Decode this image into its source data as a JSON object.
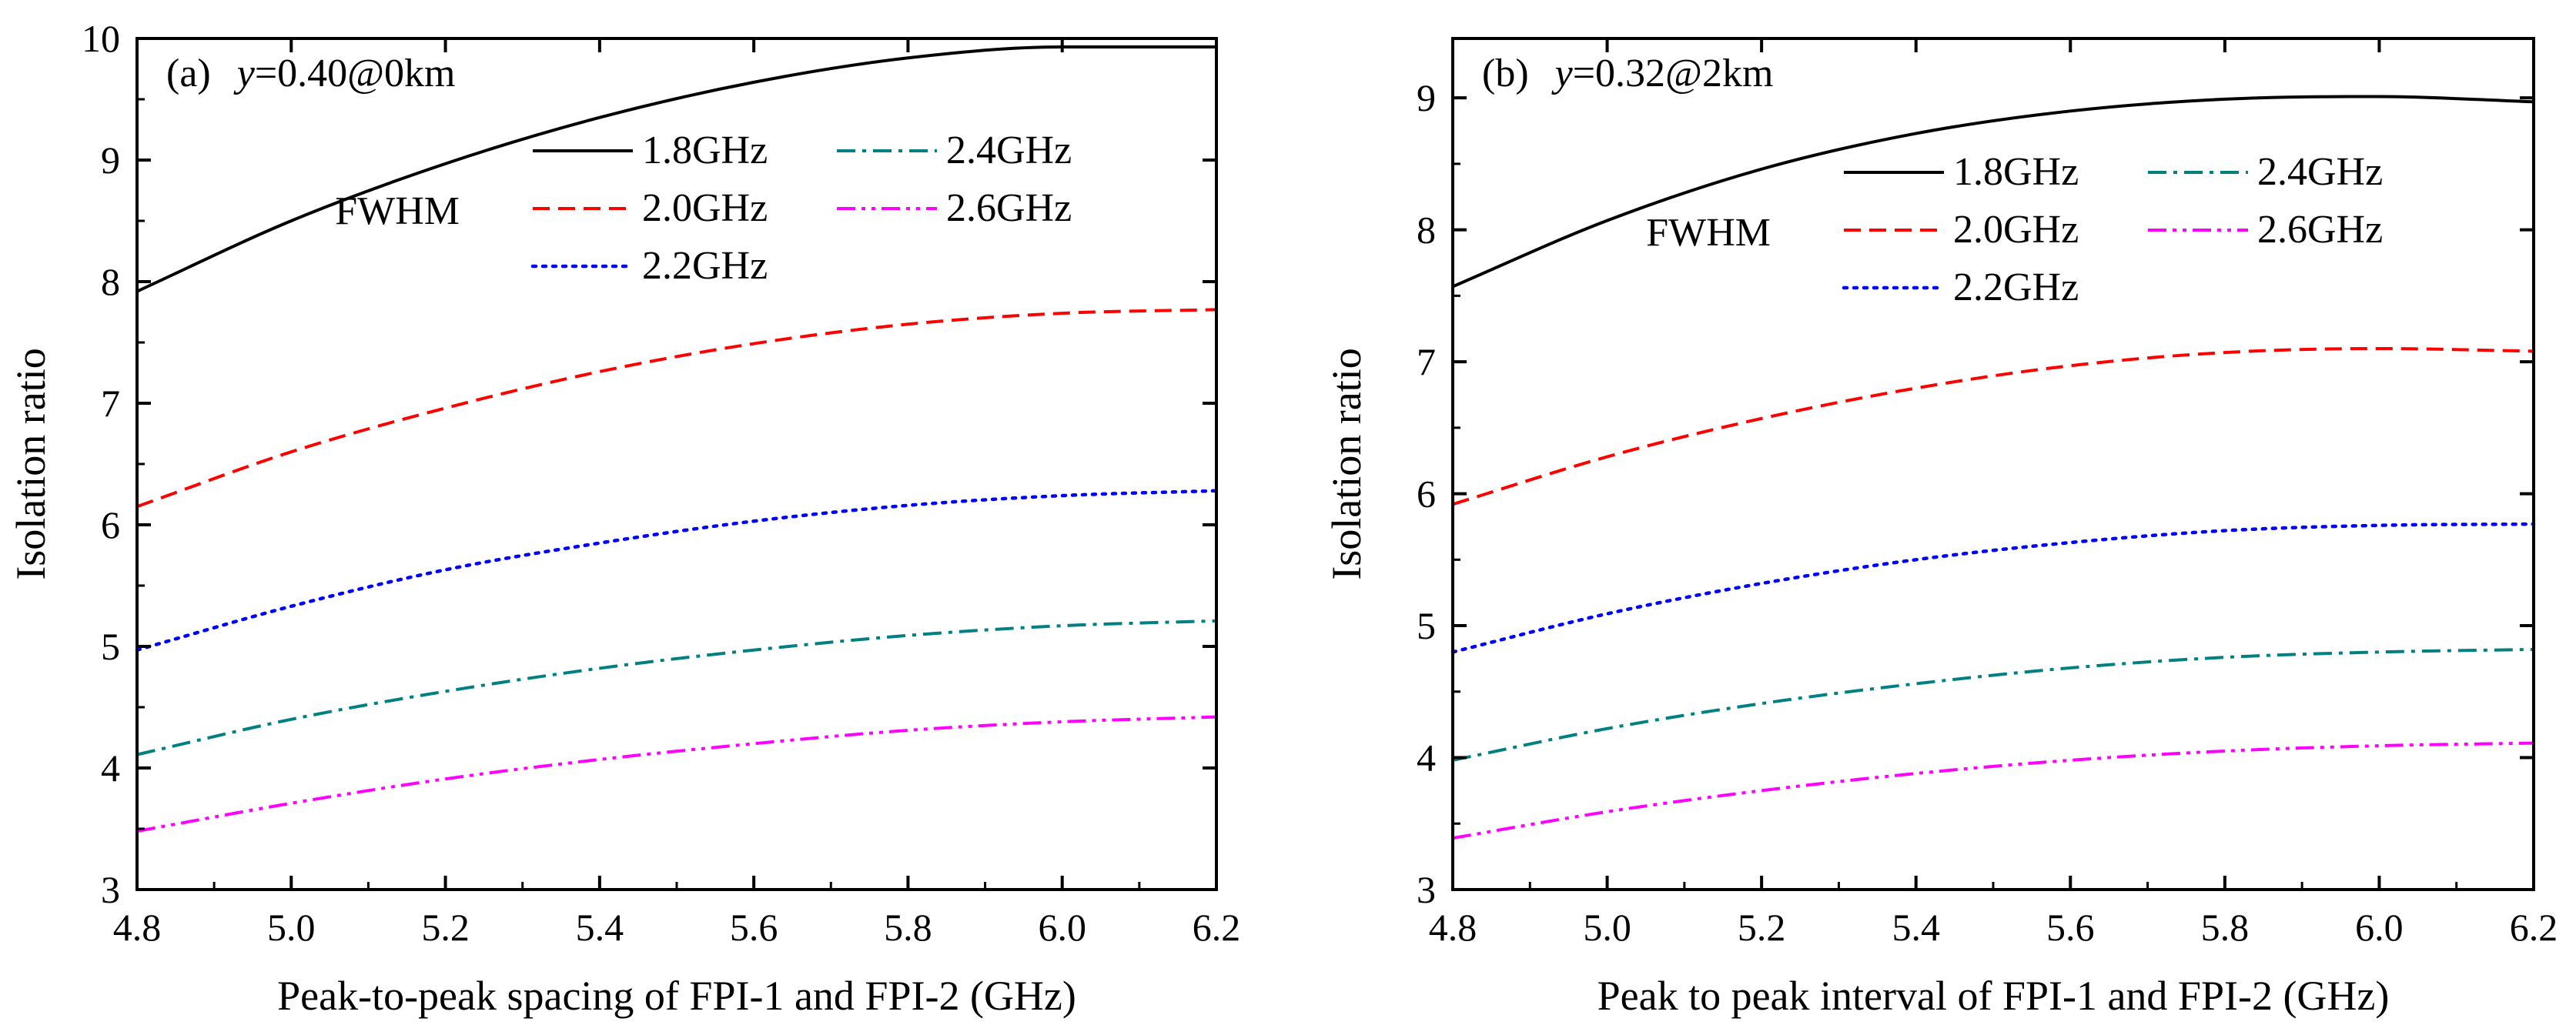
{
  "chart_data": [
    {
      "type": "line",
      "panel_label": "(a)",
      "condition": {
        "variable": "y",
        "rest": "=0.40@0km"
      },
      "xlabel": "Peak-to-peak spacing of FPI-1 and FPI-2 (GHz)",
      "ylabel": "Isolation ratio",
      "xlim": [
        4.8,
        6.2
      ],
      "ylim": [
        3,
        10
      ],
      "x_ticks": [
        4.8,
        5.0,
        5.2,
        5.4,
        5.6,
        5.8,
        6.0,
        6.2
      ],
      "x_tick_labels": [
        "4.8",
        "5.0",
        "5.2",
        "5.4",
        "5.6",
        "5.8",
        "6.0",
        "6.2"
      ],
      "y_ticks": [
        3,
        4,
        5,
        6,
        7,
        8,
        9,
        10
      ],
      "y_tick_labels": [
        "3",
        "4",
        "5",
        "6",
        "7",
        "8",
        "9",
        "10"
      ],
      "legend_title": "FWHM",
      "legend_position": "upper-right",
      "x": [
        4.8,
        5.0,
        5.2,
        5.4,
        5.6,
        5.8,
        6.0,
        6.2
      ],
      "series": [
        {
          "name": "1.8GHz",
          "color": "#000000",
          "style": "solid",
          "values": [
            7.92,
            8.5,
            8.97,
            9.35,
            9.64,
            9.84,
            9.93,
            9.93
          ]
        },
        {
          "name": "2.0GHz",
          "color": "#ff0000",
          "style": "dash",
          "values": [
            6.15,
            6.6,
            6.96,
            7.26,
            7.49,
            7.65,
            7.74,
            7.77
          ]
        },
        {
          "name": "2.2GHz",
          "color": "#0000ff",
          "style": "dot",
          "values": [
            4.97,
            5.33,
            5.63,
            5.85,
            6.03,
            6.16,
            6.24,
            6.28
          ]
        },
        {
          "name": "2.4GHz",
          "color": "#008080",
          "style": "dashdot",
          "values": [
            4.11,
            4.4,
            4.63,
            4.82,
            4.97,
            5.09,
            5.17,
            5.21
          ]
        },
        {
          "name": "2.6GHz",
          "color": "#ff00ff",
          "style": "dashdotdot",
          "values": [
            3.48,
            3.71,
            3.91,
            4.07,
            4.2,
            4.31,
            4.38,
            4.42
          ]
        }
      ]
    },
    {
      "type": "line",
      "panel_label": "(b)",
      "condition": {
        "variable": "y",
        "rest": "=0.32@2km"
      },
      "xlabel": "Peak to peak interval of FPI-1 and FPI-2 (GHz)",
      "ylabel": "Isolation ratio",
      "xlim": [
        4.8,
        6.2
      ],
      "ylim": [
        3,
        9.45
      ],
      "x_ticks": [
        4.8,
        5.0,
        5.2,
        5.4,
        5.6,
        5.8,
        6.0,
        6.2
      ],
      "x_tick_labels": [
        "4.8",
        "5.0",
        "5.2",
        "5.4",
        "5.6",
        "5.8",
        "6.0",
        "6.2"
      ],
      "y_ticks": [
        3,
        4,
        5,
        6,
        7,
        8,
        9
      ],
      "y_tick_labels": [
        "3",
        "4",
        "5",
        "6",
        "7",
        "8",
        "9"
      ],
      "legend_title": "FWHM",
      "legend_position": "upper-right",
      "x": [
        4.8,
        5.0,
        5.2,
        5.4,
        5.6,
        5.8,
        6.0,
        6.2
      ],
      "series": [
        {
          "name": "1.8GHz",
          "color": "#000000",
          "style": "solid",
          "values": [
            7.57,
            8.07,
            8.46,
            8.73,
            8.9,
            8.99,
            9.01,
            8.97
          ]
        },
        {
          "name": "2.0GHz",
          "color": "#ff0000",
          "style": "dash",
          "values": [
            5.92,
            6.28,
            6.57,
            6.8,
            6.97,
            7.07,
            7.1,
            7.08
          ]
        },
        {
          "name": "2.2GHz",
          "color": "#0000ff",
          "style": "dot",
          "values": [
            4.8,
            5.09,
            5.32,
            5.5,
            5.63,
            5.72,
            5.76,
            5.77
          ]
        },
        {
          "name": "2.4GHz",
          "color": "#008080",
          "style": "dashdot",
          "values": [
            3.98,
            4.22,
            4.41,
            4.56,
            4.68,
            4.76,
            4.8,
            4.82
          ]
        },
        {
          "name": "2.6GHz",
          "color": "#ff00ff",
          "style": "dashdotdot",
          "values": [
            3.39,
            3.59,
            3.75,
            3.88,
            3.98,
            4.05,
            4.09,
            4.11
          ]
        }
      ]
    }
  ]
}
